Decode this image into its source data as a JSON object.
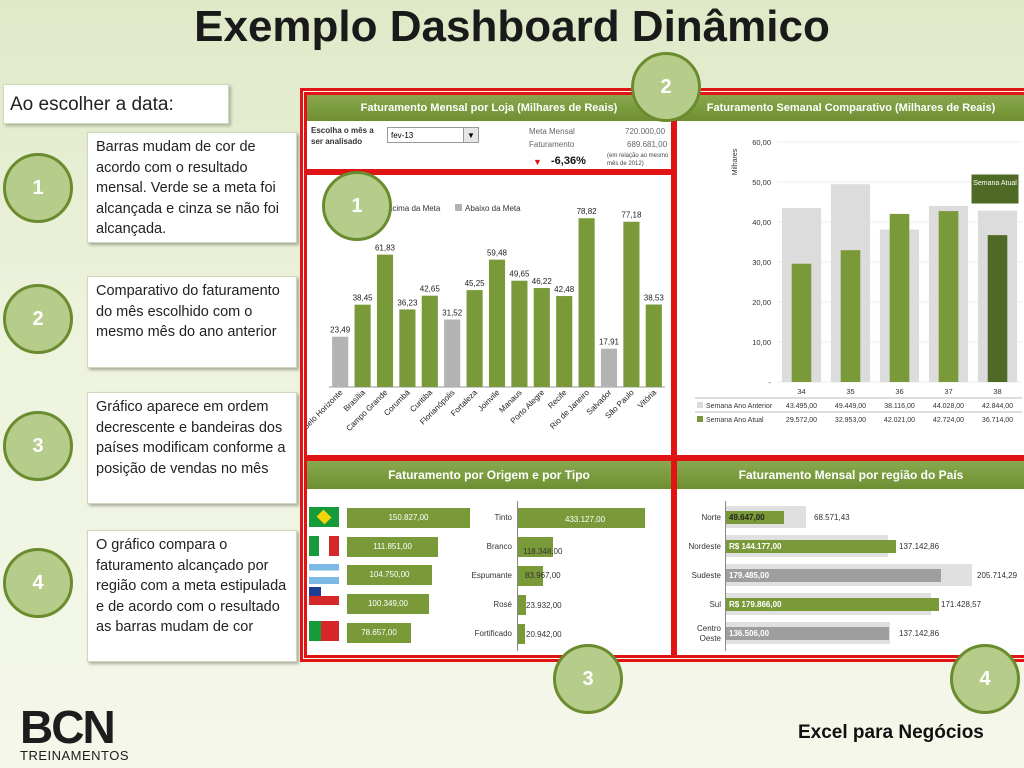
{
  "title": "Exemplo Dashboard Dinâmico",
  "intro": "Ao escolher a data:",
  "notes": [
    {
      "num": "1",
      "text": "Barras mudam de cor de acordo com o resultado mensal. Verde se a meta foi alcançada e cinza se não foi alcançada."
    },
    {
      "num": "2",
      "text": "Comparativo do faturamento do mês escolhido com o mesmo mês do ano anterior"
    },
    {
      "num": "3",
      "text": "Gráfico aparece em ordem decrescente e bandeiras dos países modificam conforme a  posição de vendas no mês"
    },
    {
      "num": "4",
      "text": "O gráfico compara o faturamento alcançado por região com a meta estipulada e de acordo com o resultado as barras mudam de cor"
    }
  ],
  "panel_markers": [
    "1",
    "2",
    "3",
    "4"
  ],
  "loja_panel": {
    "header": "Faturamento  Mensal por Loja (Milhares de Reais)",
    "select_label": "Escolha o mês a ser analisado",
    "select_value": "fev-13",
    "meta_label": "Meta Mensal",
    "meta_value": "720.000,00",
    "fat_label": "Faturamento",
    "fat_value": "689.681,00",
    "variation": "-6,36%",
    "variation_note": "(em relação ao mesmo mês de 2012)",
    "legend_above": "Acima da Meta",
    "legend_below": "Abaixo da Meta"
  },
  "semanal_panel": {
    "header": "Faturamento Semanal Comparativo (Milhares de Reais)",
    "ylabel": "Milhares",
    "current_label": "Semana Atual",
    "row1_label": "Semana Ano Anterior",
    "row2_label": "Semana Ano Atual",
    "row1": [
      "43.495,00",
      "49.449,00",
      "38.116,00",
      "44.028,00",
      "42.844,00"
    ],
    "row2": [
      "29.572,00",
      "32.953,00",
      "42.021,00",
      "42.724,00",
      "36.714,00"
    ]
  },
  "origem_panel": {
    "header": "Faturamento por Origem e por Tipo",
    "origins": [
      "150.827,00",
      "111.851,00",
      "104.750,00",
      "100.349,00",
      "78.657,00"
    ],
    "types": [
      {
        "label": "Tinto",
        "value": "433.127,00"
      },
      {
        "label": "Branco",
        "value": "118.348,00"
      },
      {
        "label": "Espumante",
        "value": "83.967,00"
      },
      {
        "label": "Rosé",
        "value": "23.932,00"
      },
      {
        "label": "Fortificado",
        "value": "20.942,00"
      }
    ]
  },
  "regiao_panel": {
    "header": "Faturamento Mensal por região do País",
    "rows": [
      {
        "label": "Norte",
        "value": "49.647,00",
        "meta": "68.571,43"
      },
      {
        "label": "Nordeste",
        "value": "R$ 144.177,00",
        "meta": "137.142,86"
      },
      {
        "label": "Sudeste",
        "value": "179.485,00",
        "meta": "205.714,29"
      },
      {
        "label": "Sul",
        "value": "R$ 179.866,00",
        "meta": "171.428,57"
      },
      {
        "label": "Centro Oeste",
        "value": "136.506,00",
        "meta": "137.142,86"
      }
    ]
  },
  "chart_data": [
    {
      "type": "bar",
      "title": "Faturamento  Mensal por Loja (Milhares de Reais)",
      "categories": [
        "Belo Horizonte",
        "Brasília",
        "Campo Grande",
        "Corumbá",
        "Curitiba",
        "Florianópolis",
        "Fortaleza",
        "Joinvile",
        "Manaus",
        "Porto Alegre",
        "Recife",
        "Rio de Janeiro",
        "Salvador",
        "São Paulo",
        "Vitória"
      ],
      "values": [
        23.49,
        38.45,
        61.83,
        36.23,
        42.65,
        31.52,
        45.25,
        59.48,
        49.65,
        46.22,
        42.48,
        78.82,
        17.91,
        77.18,
        38.53
      ],
      "status": [
        "below",
        "above",
        "above",
        "above",
        "above",
        "below",
        "above",
        "above",
        "above",
        "above",
        "above",
        "above",
        "below",
        "above",
        "above"
      ],
      "colors": {
        "above": "#7a9a3a",
        "below": "#b3b3b3"
      },
      "ylim": [
        0,
        85
      ]
    },
    {
      "type": "bar",
      "title": "Faturamento Semanal Comparativo (Milhares de Reais)",
      "categories": [
        "34",
        "35",
        "36",
        "37",
        "38"
      ],
      "series": [
        {
          "name": "Semana Ano Anterior",
          "values": [
            43.495,
            49.449,
            38.116,
            44.028,
            42.844
          ],
          "color": "#dcdcdc"
        },
        {
          "name": "Semana Ano Atual",
          "values": [
            29.572,
            32.953,
            42.021,
            42.724,
            36.714
          ],
          "color": "#7a9a3a"
        }
      ],
      "ylabel": "Milhares",
      "ylim": [
        0,
        60
      ],
      "yticks": [
        "-",
        "10,00",
        "20,00",
        "30,00",
        "40,00",
        "50,00",
        "60,00"
      ]
    },
    {
      "type": "bar",
      "title": "Faturamento por Origem e por Tipo",
      "series": [
        {
          "name": "Origem",
          "values": [
            150.827,
            111.851,
            104.75,
            100.349,
            78.657
          ]
        },
        {
          "name": "Tipo",
          "categories": [
            "Tinto",
            "Branco",
            "Espumante",
            "Rosé",
            "Fortificado"
          ],
          "values": [
            433.127,
            118.348,
            83.967,
            23.932,
            20.942
          ]
        }
      ]
    },
    {
      "type": "bar",
      "title": "Faturamento Mensal por região do País",
      "categories": [
        "Norte",
        "Nordeste",
        "Sudeste",
        "Sul",
        "Centro Oeste"
      ],
      "series": [
        {
          "name": "Faturamento",
          "values": [
            49.647,
            144.177,
            179.485,
            179.866,
            136.506
          ]
        },
        {
          "name": "Meta",
          "values": [
            68.571,
            137.143,
            205.714,
            171.429,
            137.143
          ]
        }
      ]
    }
  ],
  "logo": "BCN",
  "logo_sub": "TREINAMENTOS",
  "tagline": "Excel para Negócios"
}
